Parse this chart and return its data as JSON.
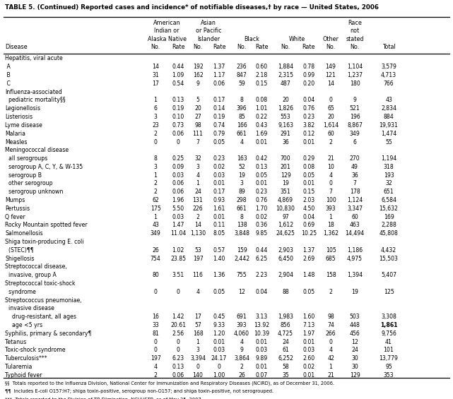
{
  "title": "TABLE 5. (Continued) Reported cases and incidence* of notifiable diseases,† by race — United States, 2006",
  "rows": [
    {
      "disease": "Hepatitis, viral acute",
      "is_section": true,
      "data": []
    },
    {
      "disease": " A",
      "is_section": false,
      "data": [
        "14",
        "0.44",
        "192",
        "1.37",
        "236",
        "0.60",
        "1,884",
        "0.78",
        "149",
        "1,104",
        "3,579"
      ]
    },
    {
      "disease": " B",
      "is_section": false,
      "data": [
        "31",
        "1.09",
        "162",
        "1.17",
        "847",
        "2.18",
        "2,315",
        "0.99",
        "121",
        "1,237",
        "4,713"
      ]
    },
    {
      "disease": " C",
      "is_section": false,
      "data": [
        "17",
        "0.54",
        "9",
        "0.06",
        "59",
        "0.15",
        "487",
        "0.20",
        "14",
        "180",
        "766"
      ]
    },
    {
      "disease": "Influenza-associated",
      "is_section": true,
      "data": []
    },
    {
      "disease": "  pediatric mortality§§",
      "is_section": false,
      "data": [
        "1",
        "0.13",
        "5",
        "0.17",
        "8",
        "0.08",
        "20",
        "0.04",
        "0",
        "9",
        "43"
      ]
    },
    {
      "disease": "Legionellosis",
      "is_section": false,
      "data": [
        "6",
        "0.19",
        "20",
        "0.14",
        "396",
        "1.01",
        "1,826",
        "0.76",
        "65",
        "521",
        "2,834"
      ]
    },
    {
      "disease": "Listeriosis",
      "is_section": false,
      "data": [
        "3",
        "0.10",
        "27",
        "0.19",
        "85",
        "0.22",
        "553",
        "0.23",
        "20",
        "196",
        "884"
      ]
    },
    {
      "disease": "Lyme disease",
      "is_section": false,
      "data": [
        "23",
        "0.73",
        "98",
        "0.74",
        "166",
        "0.43",
        "9,163",
        "3.82",
        "1,614",
        "8,867",
        "19,931"
      ]
    },
    {
      "disease": "Malaria",
      "is_section": false,
      "data": [
        "2",
        "0.06",
        "111",
        "0.79",
        "661",
        "1.69",
        "291",
        "0.12",
        "60",
        "349",
        "1,474"
      ]
    },
    {
      "disease": "Measles",
      "is_section": false,
      "data": [
        "0",
        "0",
        "7",
        "0.05",
        "4",
        "0.01",
        "36",
        "0.01",
        "2",
        "6",
        "55"
      ]
    },
    {
      "disease": "Meningococcal disease",
      "is_section": true,
      "data": []
    },
    {
      "disease": "  all serogroups",
      "is_section": false,
      "data": [
        "8",
        "0.25",
        "32",
        "0.23",
        "163",
        "0.42",
        "700",
        "0.29",
        "21",
        "270",
        "1,194"
      ]
    },
    {
      "disease": "  serogroup A, C, Y, & W-135",
      "is_section": false,
      "data": [
        "3",
        "0.09",
        "3",
        "0.02",
        "52",
        "0.13",
        "201",
        "0.08",
        "10",
        "49",
        "318"
      ]
    },
    {
      "disease": "  serogroup B",
      "is_section": false,
      "data": [
        "1",
        "0.03",
        "4",
        "0.03",
        "19",
        "0.05",
        "129",
        "0.05",
        "4",
        "36",
        "193"
      ]
    },
    {
      "disease": "  other serogroup",
      "is_section": false,
      "data": [
        "2",
        "0.06",
        "1",
        "0.01",
        "3",
        "0.01",
        "19",
        "0.01",
        "0",
        "7",
        "32"
      ]
    },
    {
      "disease": "  serogroup unknown",
      "is_section": false,
      "data": [
        "2",
        "0.06",
        "24",
        "0.17",
        "89",
        "0.23",
        "351",
        "0.15",
        "7",
        "178",
        "651"
      ]
    },
    {
      "disease": "Mumps",
      "is_section": false,
      "data": [
        "62",
        "1.96",
        "131",
        "0.93",
        "298",
        "0.76",
        "4,869",
        "2.03",
        "100",
        "1,124",
        "6,584"
      ]
    },
    {
      "disease": "Pertussis",
      "is_section": false,
      "data": [
        "175",
        "5.50",
        "226",
        "1.61",
        "661",
        "1.70",
        "10,830",
        "4.50",
        "393",
        "3,347",
        "15,632"
      ]
    },
    {
      "disease": "Q fever",
      "is_section": false,
      "data": [
        "1",
        "0.03",
        "2",
        "0.01",
        "8",
        "0.02",
        "97",
        "0.04",
        "1",
        "60",
        "169"
      ]
    },
    {
      "disease": "Rocky Mountain spotted fever",
      "is_section": false,
      "data": [
        "43",
        "1.47",
        "14",
        "0.11",
        "138",
        "0.36",
        "1,612",
        "0.69",
        "18",
        "463",
        "2,288"
      ]
    },
    {
      "disease": "Salmonellosis",
      "is_section": false,
      "data": [
        "349",
        "11.04",
        "1,130",
        "8.05",
        "3,848",
        "9.85",
        "24,625",
        "10.25",
        "1,362",
        "14,494",
        "45,808"
      ]
    },
    {
      "disease": "Shiga toxin-producing E. coli",
      "is_section": true,
      "data": []
    },
    {
      "disease": "  (STEC)¶¶",
      "is_section": false,
      "data": [
        "26",
        "1.02",
        "53",
        "0.57",
        "159",
        "0.44",
        "2,903",
        "1.37",
        "105",
        "1,186",
        "4,432"
      ]
    },
    {
      "disease": "Shigellosis",
      "is_section": false,
      "data": [
        "754",
        "23.85",
        "197",
        "1.40",
        "2,442",
        "6.25",
        "6,450",
        "2.69",
        "685",
        "4,975",
        "15,503"
      ]
    },
    {
      "disease": "Streptococcal disease,",
      "is_section": true,
      "data": []
    },
    {
      "disease": "  invasive, group A",
      "is_section": false,
      "data": [
        "80",
        "3.51",
        "116",
        "1.36",
        "755",
        "2.23",
        "2,904",
        "1.48",
        "158",
        "1,394",
        "5,407"
      ]
    },
    {
      "disease": "Streptococcal toxic-shock",
      "is_section": true,
      "data": []
    },
    {
      "disease": "  syndrome",
      "is_section": false,
      "data": [
        "0",
        "0",
        "4",
        "0.05",
        "12",
        "0.04",
        "88",
        "0.05",
        "2",
        "19",
        "125"
      ]
    },
    {
      "disease": "Streptococcus pneumoniae,",
      "is_section": true,
      "data": []
    },
    {
      "disease": "  invasive disease",
      "is_section": true,
      "data": []
    },
    {
      "disease": "    drug-resistant, all ages",
      "is_section": false,
      "data": [
        "16",
        "1.42",
        "17",
        "0.45",
        "691",
        "3.13",
        "1,983",
        "1.60",
        "98",
        "503",
        "3,308"
      ]
    },
    {
      "disease": "    age <5 yrs",
      "is_section": false,
      "bold_total": true,
      "data": [
        "33",
        "20.61",
        "57",
        "9.33",
        "393",
        "13.92",
        "856",
        "7.13",
        "74",
        "448",
        "1,861"
      ]
    },
    {
      "disease": "Syphilis, primary & secondary¶",
      "is_section": false,
      "data": [
        "81",
        "2.56",
        "168",
        "1.20",
        "4,060",
        "10.39",
        "4,725",
        "1.97",
        "266",
        "456",
        "9,756"
      ]
    },
    {
      "disease": "Tetanus",
      "is_section": false,
      "data": [
        "0",
        "0",
        "1",
        "0.01",
        "4",
        "0.01",
        "24",
        "0.01",
        "0",
        "12",
        "41"
      ]
    },
    {
      "disease": "Toxic-shock syndrome",
      "is_section": false,
      "data": [
        "0",
        "0",
        "3",
        "0.03",
        "9",
        "0.03",
        "61",
        "0.03",
        "4",
        "24",
        "101"
      ]
    },
    {
      "disease": "Tuberculosis***",
      "is_section": false,
      "data": [
        "197",
        "6.23",
        "3,394",
        "24.17",
        "3,864",
        "9.89",
        "6,252",
        "2.60",
        "42",
        "30",
        "13,779"
      ]
    },
    {
      "disease": "Tularemia",
      "is_section": false,
      "data": [
        "4",
        "0.13",
        "0",
        "0",
        "2",
        "0.01",
        "58",
        "0.02",
        "1",
        "30",
        "95"
      ]
    },
    {
      "disease": "Typhoid fever",
      "is_section": false,
      "data": [
        "2",
        "0.06",
        "140",
        "1.00",
        "26",
        "0.07",
        "35",
        "0.01",
        "21",
        "129",
        "353"
      ]
    }
  ],
  "footnotes": [
    "§§  Totals reported to the Influenza Division, National Center for Immunization and Respiratory Diseases (NCIRD), as of December 31, 2006.",
    "¶¶  Includes E-coli O157:H7; shiga toxin-positive, serogroup non-O157; and shiga toxin-positive, not serogrouped.",
    "***  Totals reported to the Division of TB Elimination, NCHHSTP, as of May 25, 2007."
  ]
}
